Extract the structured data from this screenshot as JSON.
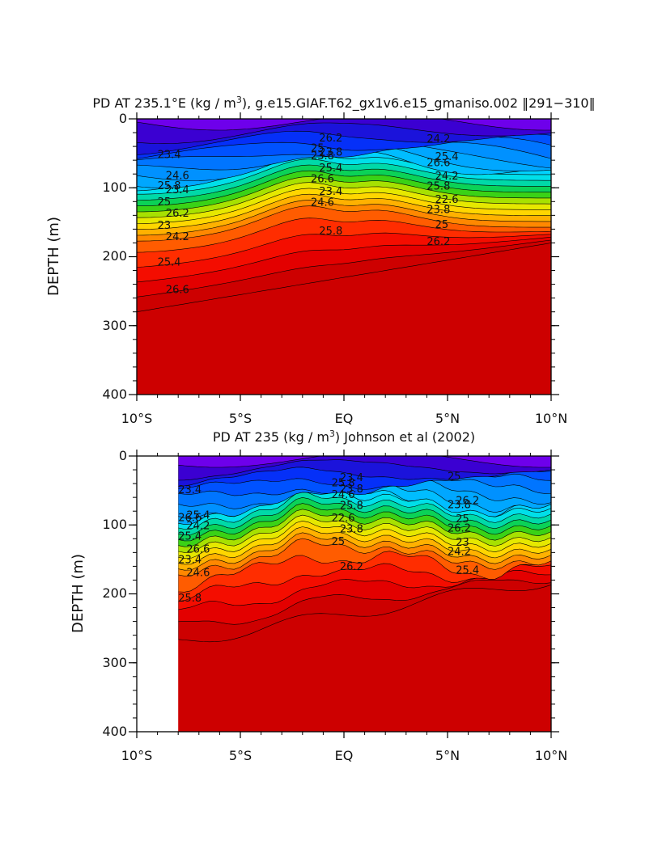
{
  "chart_data": [
    {
      "type": "heatmap",
      "title_prefix": "PD AT 235.1°E (kg / m",
      "title_sup": "3",
      "title_suffix": "), g.e15.GIAF.T62_gx1v6.e15_gmaniso.002 ‖291−310‖",
      "ylabel": "DEPTH (m)",
      "xlabel": "",
      "x_ticks": [
        "10°S",
        "5°S",
        "EQ",
        "5°N",
        "10°N"
      ],
      "y_ticks": [
        "0",
        "100",
        "200",
        "300",
        "400"
      ],
      "xlim": [
        -10,
        10
      ],
      "ylim": [
        0,
        400
      ],
      "x_start": -10,
      "contour_interval": 0.2,
      "contour_labels": [
        "23.4",
        "23.8",
        "24.2",
        "24.6",
        "25",
        "25.4",
        "25.8",
        "26.2",
        "26.6",
        "23.4",
        "23.8",
        "24.2",
        "25",
        "25.4",
        "25.8",
        "26.2",
        "26.6",
        "22.6",
        "23",
        "23.4",
        "23.8",
        "24.2",
        "24.6",
        "25",
        "25.4",
        "25.8",
        "26.2",
        "26.6"
      ],
      "colorbar": "none"
    },
    {
      "type": "heatmap",
      "title_prefix": "PD AT 235 (kg / m",
      "title_sup": "3",
      "title_suffix": ") Johnson et al (2002)",
      "ylabel": "DEPTH (m)",
      "xlabel": "",
      "x_ticks": [
        "10°S",
        "5°S",
        "EQ",
        "5°N",
        "10°N"
      ],
      "y_ticks": [
        "0",
        "100",
        "200",
        "300",
        "400"
      ],
      "xlim": [
        -10,
        10
      ],
      "ylim": [
        0,
        400
      ],
      "x_start": -8,
      "contour_interval": 0.2,
      "contour_labels": [
        "23.4",
        "23.8",
        "25",
        "25.4",
        "25.8",
        "26.2",
        "26.6",
        "23.4",
        "23.8",
        "24.2",
        "24.6",
        "25",
        "25.4",
        "25.8",
        "26.2",
        "26.6",
        "22.6",
        "23",
        "23.4",
        "23.8",
        "24.2",
        "24.6",
        "25",
        "25.4",
        "25.8",
        "26.2"
      ],
      "colorbar": "none"
    }
  ]
}
